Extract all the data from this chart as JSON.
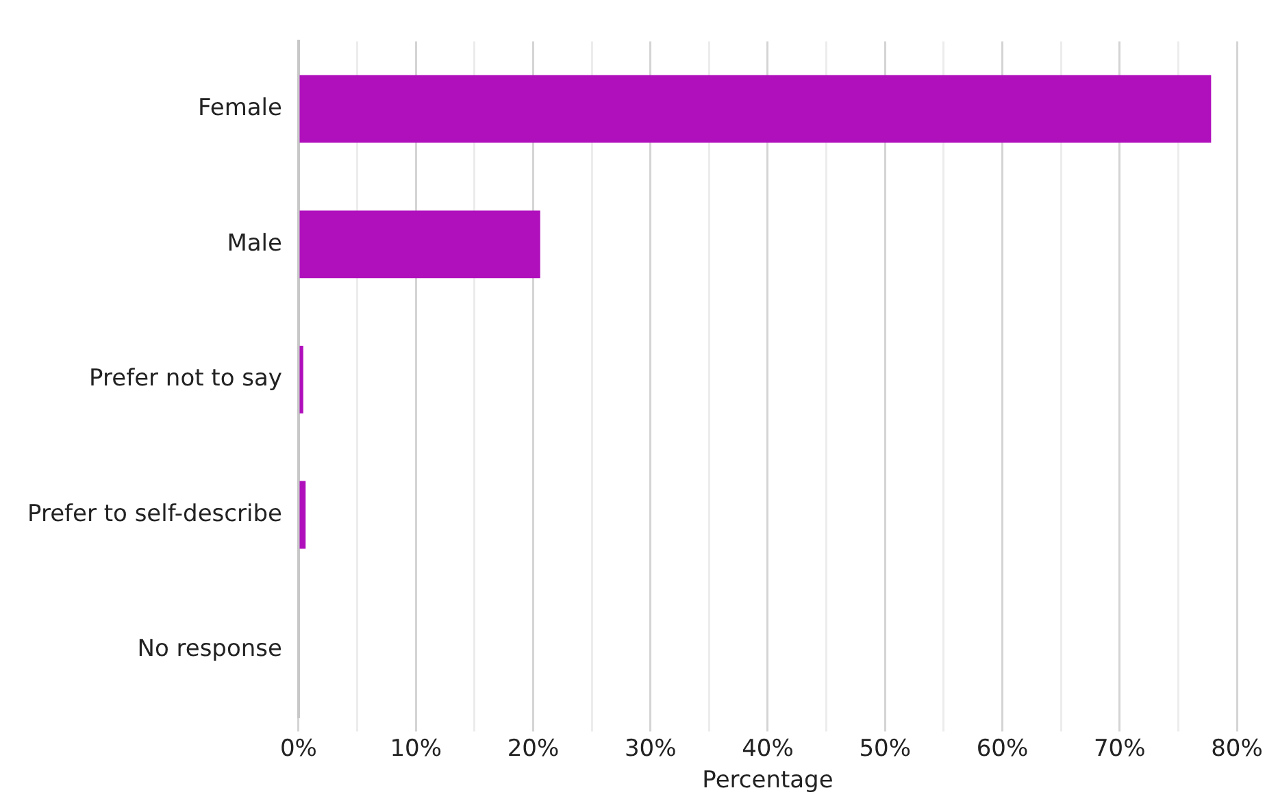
{
  "chart_data": {
    "type": "bar",
    "orientation": "horizontal",
    "xlabel": "Percentage",
    "categories": [
      "Female",
      "Male",
      "Prefer not to say",
      "Prefer to self-describe",
      "No response"
    ],
    "values": [
      77.8,
      20.6,
      0.4,
      0.6,
      0
    ],
    "color": "#b010bc",
    "xlim": [
      0,
      80
    ],
    "xticks": [
      {
        "value": 0,
        "label": "0%"
      },
      {
        "value": 5,
        "label": null
      },
      {
        "value": 10,
        "label": "10%"
      },
      {
        "value": 15,
        "label": null
      },
      {
        "value": 20,
        "label": "20%"
      },
      {
        "value": 25,
        "label": null
      },
      {
        "value": 30,
        "label": "30%"
      },
      {
        "value": 35,
        "label": null
      },
      {
        "value": 40,
        "label": "40%"
      },
      {
        "value": 45,
        "label": null
      },
      {
        "value": 50,
        "label": "50%"
      },
      {
        "value": 55,
        "label": null
      },
      {
        "value": 60,
        "label": "60%"
      },
      {
        "value": 65,
        "label": null
      },
      {
        "value": 70,
        "label": "70%"
      },
      {
        "value": 75,
        "label": null
      },
      {
        "value": 80,
        "label": "80%"
      }
    ],
    "grid": "x",
    "legend": false
  }
}
